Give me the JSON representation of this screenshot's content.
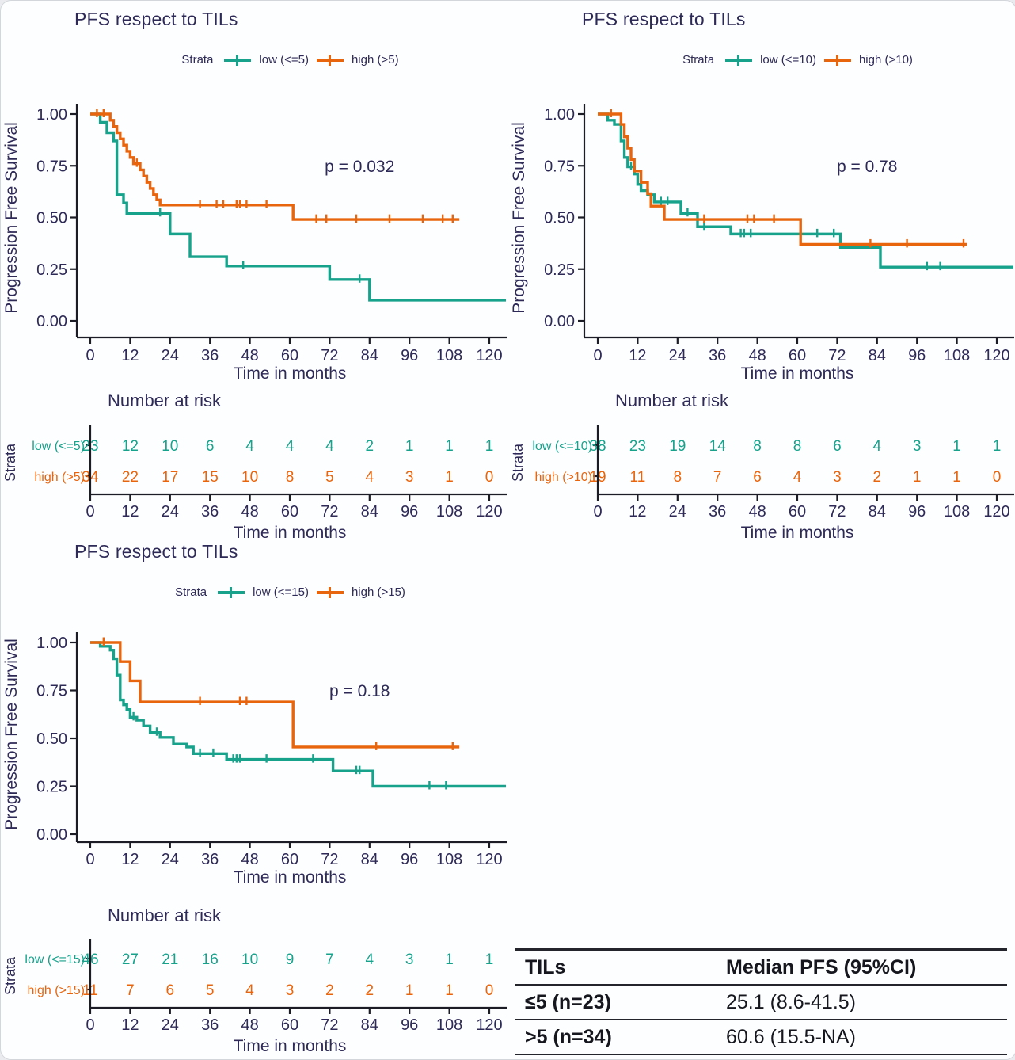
{
  "chart_data": {
    "type": "line",
    "subtype": "kaplan-meier-step",
    "figure_note": "Three Kaplan-Meier PFS plots by TILs cutoff with number-at-risk tables and a median PFS summary table",
    "legend_title": "Strata",
    "ylabel": "Progression Free Survival",
    "xlabel": "Time in months",
    "risk_header": "Number at risk",
    "strata_axis_label": "Strata",
    "x_ticks": [
      0,
      12,
      24,
      36,
      48,
      60,
      72,
      84,
      96,
      108,
      120
    ],
    "xlim": [
      0,
      126
    ],
    "ylim": [
      0,
      1
    ],
    "y_ticks": [
      "1.00",
      "0.75",
      "0.50",
      "0.25",
      "0.00"
    ],
    "colors": {
      "low": "#17A28C",
      "high": "#E8650D",
      "text": "#2E2A57",
      "tabletext": "#16161E"
    },
    "panels": [
      {
        "title": "PFS respect to TILs",
        "p_value": "p = 0.032",
        "p_at": {
          "month": 81,
          "value": 0.72
        },
        "legend_low": "low (<=5)",
        "legend_high": "high (>5)",
        "risk": {
          "low_label": "low (<=5)",
          "high_label": "high (>5)",
          "low": [
            23,
            12,
            10,
            6,
            4,
            4,
            4,
            2,
            1,
            1,
            1
          ],
          "high": [
            34,
            22,
            17,
            15,
            10,
            8,
            5,
            4,
            3,
            1,
            0
          ]
        },
        "series": {
          "low": {
            "points": [
              [
                0,
                1
              ],
              [
                3,
                0.96
              ],
              [
                5,
                0.91
              ],
              [
                7,
                0.87
              ],
              [
                8,
                0.61
              ],
              [
                10,
                0.57
              ],
              [
                11,
                0.52
              ],
              [
                24,
                0.42
              ],
              [
                30,
                0.31
              ],
              [
                41,
                0.265
              ],
              [
                72,
                0.2
              ],
              [
                84,
                0.1
              ]
            ],
            "censors": [
              [
                21,
                0.52
              ],
              [
                46,
                0.265
              ],
              [
                81,
                0.2
              ]
            ],
            "end": 125
          },
          "high": {
            "points": [
              [
                0,
                1
              ],
              [
                6,
                0.97
              ],
              [
                7,
                0.94
              ],
              [
                8,
                0.91
              ],
              [
                9,
                0.88
              ],
              [
                10,
                0.85
              ],
              [
                11,
                0.82
              ],
              [
                12,
                0.79
              ],
              [
                13,
                0.76
              ],
              [
                15,
                0.73
              ],
              [
                16,
                0.7
              ],
              [
                17,
                0.67
              ],
              [
                18,
                0.64
              ],
              [
                19,
                0.61
              ],
              [
                20,
                0.585
              ],
              [
                21,
                0.56
              ],
              [
                61,
                0.49
              ]
            ],
            "censors": [
              [
                2,
                1
              ],
              [
                4,
                1
              ],
              [
                14,
                0.76
              ],
              [
                33,
                0.56
              ],
              [
                38,
                0.56
              ],
              [
                40,
                0.56
              ],
              [
                44,
                0.56
              ],
              [
                45,
                0.56
              ],
              [
                47,
                0.56
              ],
              [
                53,
                0.56
              ],
              [
                68,
                0.49
              ],
              [
                71,
                0.49
              ],
              [
                80,
                0.49
              ],
              [
                90,
                0.49
              ],
              [
                100,
                0.49
              ],
              [
                106,
                0.49
              ],
              [
                109,
                0.49
              ]
            ],
            "end": 111
          }
        }
      },
      {
        "title": "PFS respect to TILs",
        "p_value": "p = 0.78",
        "p_at": {
          "month": 81,
          "value": 0.72
        },
        "legend_low": "low (<=10)",
        "legend_high": "high (>10)",
        "risk": {
          "low_label": "low (<=10)",
          "high_label": "high (>10)",
          "low": [
            38,
            23,
            19,
            14,
            8,
            8,
            6,
            4,
            3,
            1,
            1
          ],
          "high": [
            19,
            11,
            8,
            7,
            6,
            4,
            3,
            2,
            1,
            1,
            0
          ]
        },
        "series": {
          "low": {
            "points": [
              [
                0,
                1
              ],
              [
                3,
                0.97
              ],
              [
                5,
                0.95
              ],
              [
                7,
                0.87
              ],
              [
                8,
                0.79
              ],
              [
                9,
                0.745
              ],
              [
                11,
                0.71
              ],
              [
                12,
                0.66
              ],
              [
                13,
                0.63
              ],
              [
                15,
                0.61
              ],
              [
                17,
                0.575
              ],
              [
                25,
                0.52
              ],
              [
                30,
                0.455
              ],
              [
                40,
                0.42
              ],
              [
                73,
                0.355
              ],
              [
                85,
                0.26
              ]
            ],
            "censors": [
              [
                10,
                0.745
              ],
              [
                19,
                0.575
              ],
              [
                21,
                0.575
              ],
              [
                27,
                0.52
              ],
              [
                32,
                0.455
              ],
              [
                43,
                0.42
              ],
              [
                44,
                0.42
              ],
              [
                46,
                0.42
              ],
              [
                66,
                0.42
              ],
              [
                71,
                0.42
              ],
              [
                99,
                0.26
              ],
              [
                103,
                0.26
              ]
            ],
            "end": 125
          },
          "high": {
            "points": [
              [
                0,
                1
              ],
              [
                7,
                0.95
              ],
              [
                8,
                0.89
              ],
              [
                9,
                0.835
              ],
              [
                10,
                0.78
              ],
              [
                11,
                0.725
              ],
              [
                13,
                0.67
              ],
              [
                15,
                0.615
              ],
              [
                16,
                0.555
              ],
              [
                20,
                0.49
              ],
              [
                61,
                0.37
              ]
            ],
            "censors": [
              [
                4,
                1
              ],
              [
                32,
                0.49
              ],
              [
                45,
                0.49
              ],
              [
                47,
                0.49
              ],
              [
                53,
                0.49
              ],
              [
                82,
                0.37
              ],
              [
                93,
                0.37
              ],
              [
                110,
                0.37
              ]
            ],
            "end": 111
          }
        }
      },
      {
        "title": "PFS respect to TILs",
        "p_value": "p = 0.18",
        "p_at": {
          "month": 81,
          "value": 0.72
        },
        "legend_low": "low (<=15)",
        "legend_high": "high (>15)",
        "risk": {
          "low_label": "low (<=15)",
          "high_label": "high (>15)",
          "low": [
            46,
            27,
            21,
            16,
            10,
            9,
            7,
            4,
            3,
            1,
            1
          ],
          "high": [
            11,
            7,
            6,
            5,
            4,
            3,
            2,
            2,
            1,
            1,
            0
          ]
        },
        "series": {
          "low": {
            "points": [
              [
                0,
                1
              ],
              [
                3,
                0.98
              ],
              [
                6,
                0.96
              ],
              [
                7,
                0.915
              ],
              [
                8,
                0.83
              ],
              [
                9,
                0.7
              ],
              [
                10,
                0.675
              ],
              [
                11,
                0.65
              ],
              [
                12,
                0.61
              ],
              [
                14,
                0.595
              ],
              [
                16,
                0.565
              ],
              [
                18,
                0.53
              ],
              [
                21,
                0.505
              ],
              [
                25,
                0.47
              ],
              [
                29,
                0.455
              ],
              [
                31,
                0.42
              ],
              [
                41,
                0.39
              ],
              [
                73,
                0.33
              ],
              [
                85,
                0.25
              ]
            ],
            "censors": [
              [
                13,
                0.61
              ],
              [
                20,
                0.53
              ],
              [
                33,
                0.42
              ],
              [
                37,
                0.42
              ],
              [
                43,
                0.39
              ],
              [
                44,
                0.39
              ],
              [
                45,
                0.39
              ],
              [
                53,
                0.39
              ],
              [
                67,
                0.39
              ],
              [
                80,
                0.33
              ],
              [
                81,
                0.33
              ],
              [
                102,
                0.25
              ],
              [
                107,
                0.25
              ]
            ],
            "end": 125
          },
          "high": {
            "points": [
              [
                0,
                1
              ],
              [
                9,
                0.9
              ],
              [
                12,
                0.8
              ],
              [
                15,
                0.69
              ],
              [
                61,
                0.455
              ]
            ],
            "censors": [
              [
                4,
                1
              ],
              [
                33,
                0.69
              ],
              [
                45,
                0.69
              ],
              [
                47,
                0.69
              ],
              [
                86,
                0.455
              ],
              [
                109,
                0.455
              ]
            ],
            "end": 111
          }
        }
      }
    ],
    "summary_table": {
      "headers": [
        "TILs",
        "Median PFS (95%CI)"
      ],
      "rows": [
        [
          "≤5 (n=23)",
          "25.1 (8.6-41.5)"
        ],
        [
          ">5 (n=34)",
          "60.6 (15.5-NA)"
        ]
      ]
    }
  }
}
